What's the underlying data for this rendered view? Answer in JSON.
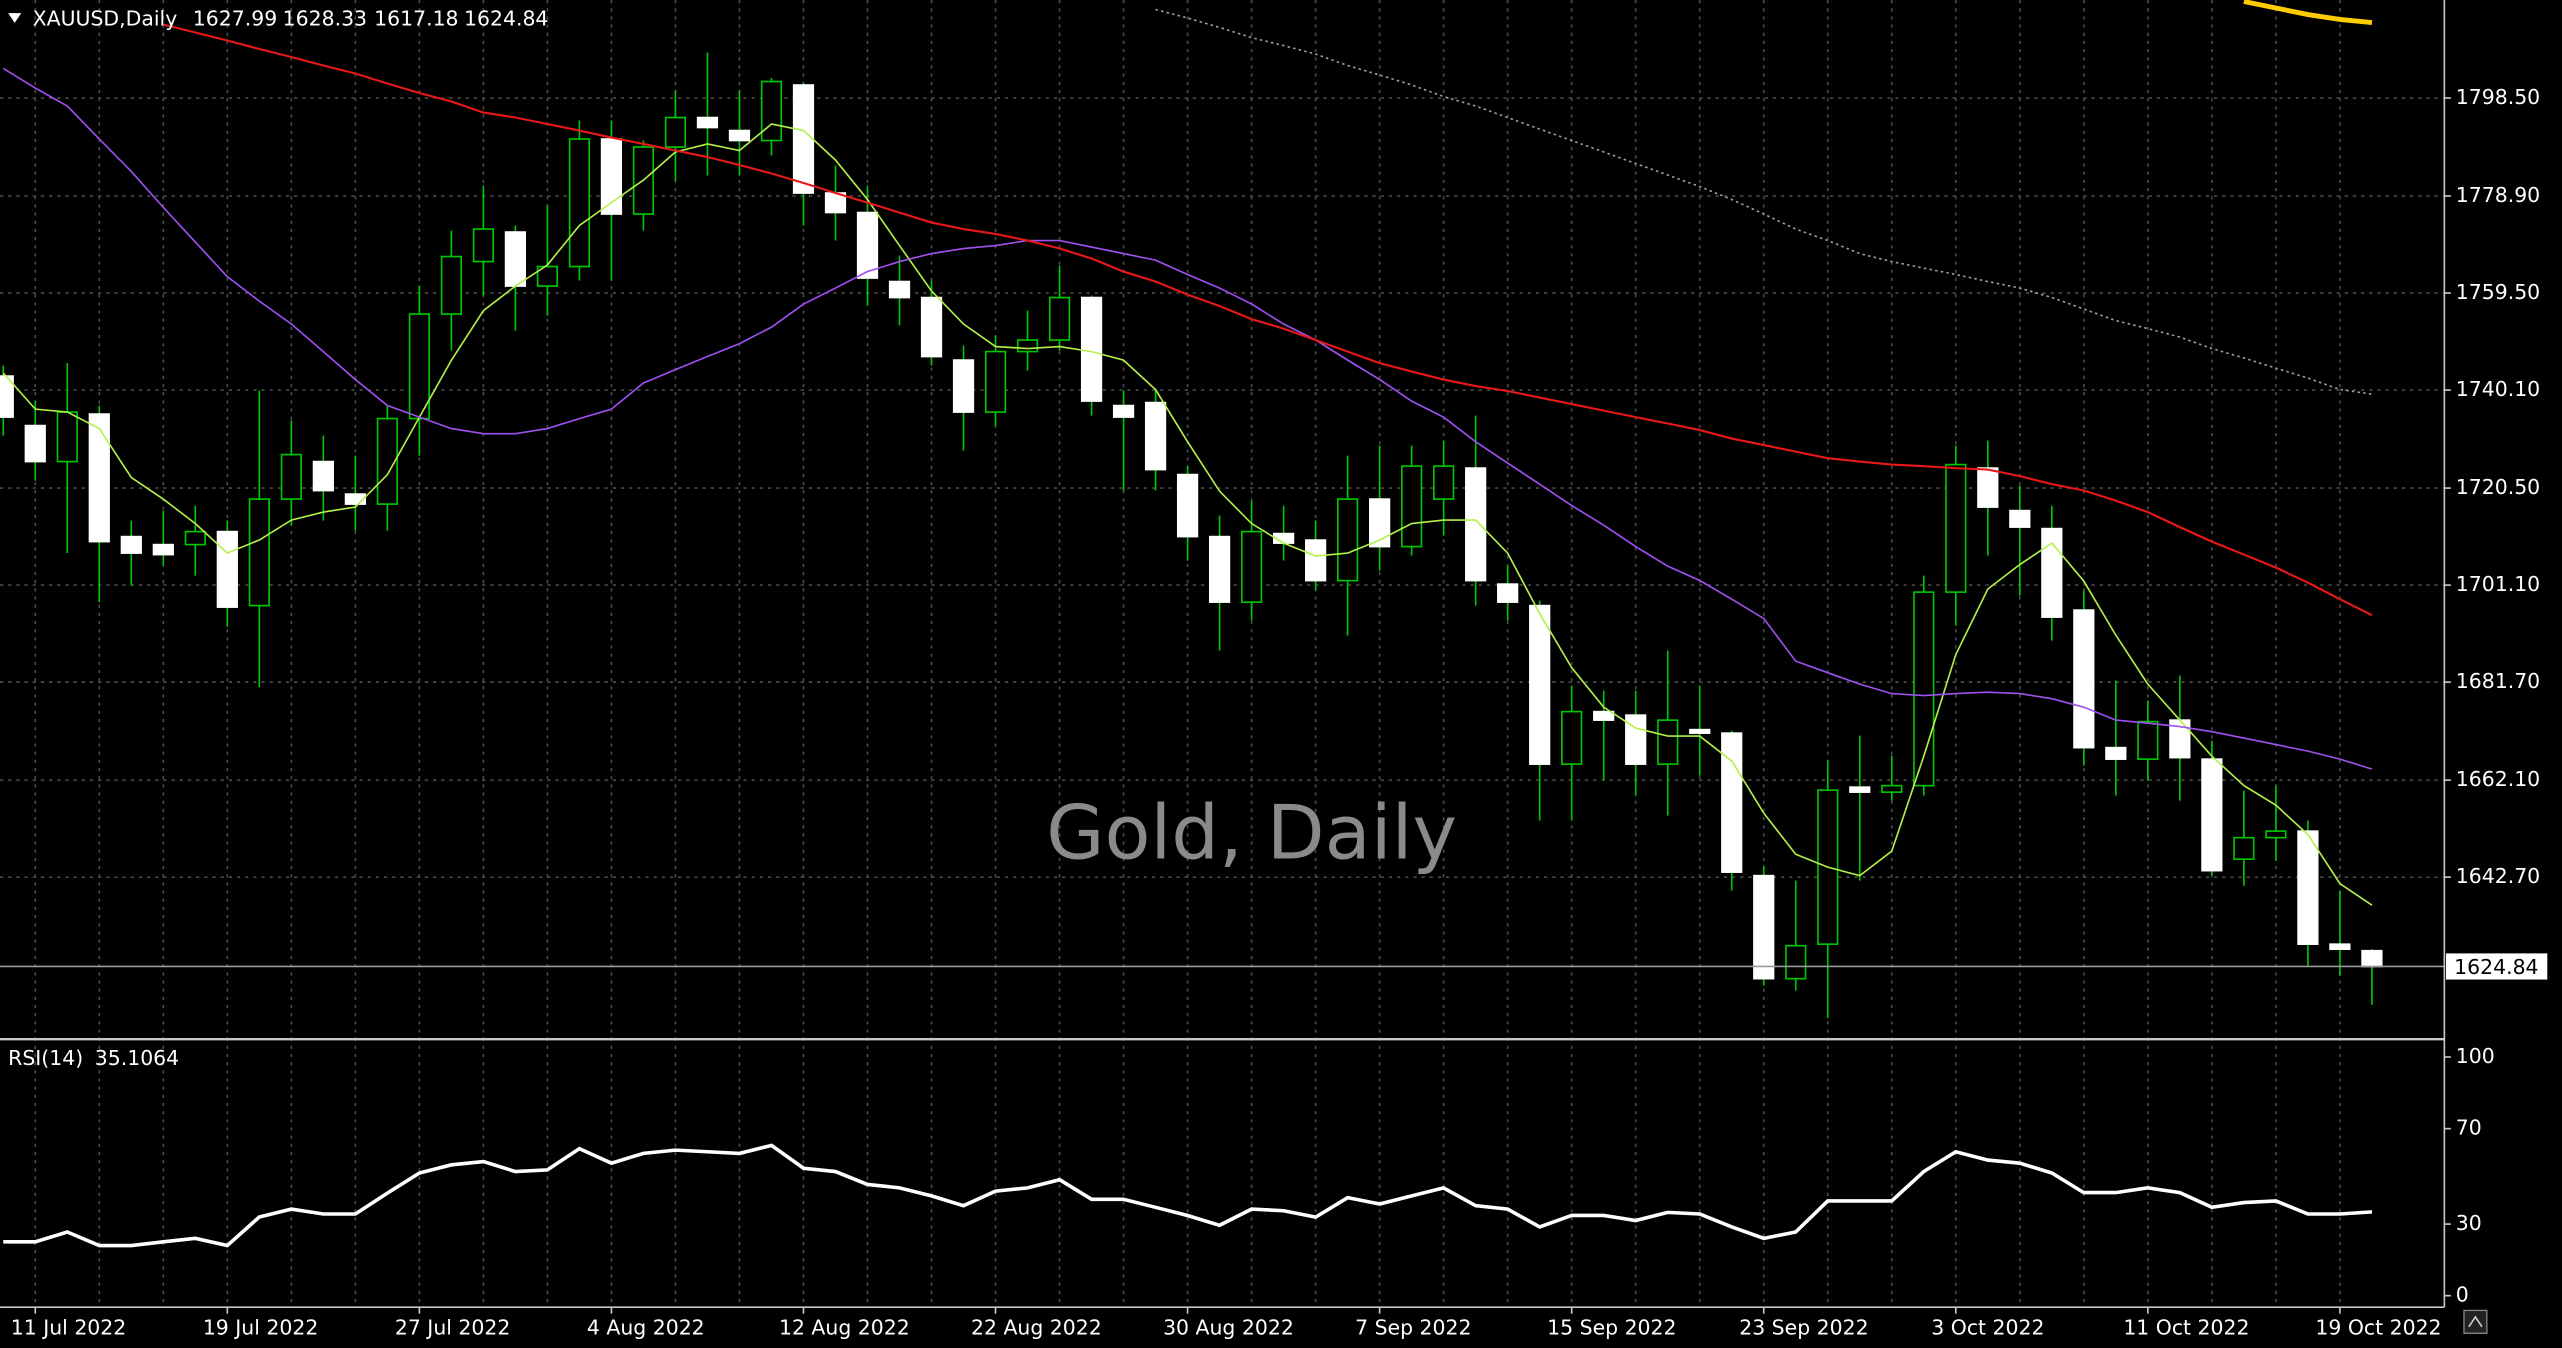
{
  "chart_data": [
    {
      "type": "candlestick",
      "title": "XAUUSD,Daily",
      "watermark": "Gold, Daily",
      "categories": [
        null,
        "11 Jul 2022",
        null,
        null,
        null,
        null,
        null,
        "19 Jul 2022",
        null,
        null,
        null,
        null,
        null,
        "27 Jul 2022",
        null,
        null,
        null,
        null,
        null,
        "4 Aug 2022",
        null,
        null,
        null,
        null,
        null,
        "12 Aug 2022",
        null,
        null,
        null,
        null,
        null,
        "22 Aug 2022",
        null,
        null,
        null,
        null,
        null,
        "30 Aug 2022",
        null,
        null,
        null,
        null,
        null,
        "7 Sep 2022",
        null,
        null,
        null,
        null,
        null,
        "15 Sep 2022",
        null,
        null,
        null,
        null,
        null,
        "23 Sep 2022",
        null,
        null,
        null,
        null,
        null,
        "3 Oct 2022",
        null,
        null,
        null,
        null,
        null,
        "11 Oct 2022",
        null,
        null,
        null,
        null,
        null,
        "19 Oct 2022",
        null
      ],
      "open": [
        1742.9,
        1733.0,
        1725.8,
        1735.3,
        1710.8,
        1709.2,
        1709.2,
        1711.8,
        1697.0,
        1718.3,
        1725.8,
        1719.3,
        1717.3,
        1734.4,
        1755.3,
        1765.8,
        1771.7,
        1760.9,
        1764.8,
        1790.3,
        1775.3,
        1788.7,
        1794.6,
        1792.0,
        1790.0,
        1801.1,
        1779.5,
        1775.6,
        1761.8,
        1758.6,
        1746.1,
        1735.7,
        1747.8,
        1750.1,
        1758.6,
        1737.0,
        1737.6,
        1723.2,
        1710.8,
        1697.7,
        1711.4,
        1710.1,
        1702.0,
        1718.3,
        1708.8,
        1718.3,
        1724.5,
        1701.3,
        1697.0,
        1665.3,
        1675.8,
        1675.1,
        1665.3,
        1672.2,
        1671.5,
        1643.0,
        1622.4,
        1629.3,
        1660.7,
        1659.7,
        1661.0,
        1699.7,
        1724.5,
        1716.0,
        1712.4,
        1696.1,
        1668.6,
        1666.3,
        1674.1,
        1666.3,
        1646.3,
        1650.6,
        1651.9,
        1629.3,
        1627.99
      ],
      "high": [
        1745,
        1738,
        1745.5,
        1737,
        1714,
        1716,
        1717,
        1714,
        1740,
        1734,
        1731,
        1727,
        1737,
        1761,
        1772,
        1781,
        1773,
        1777,
        1794,
        1794,
        1790,
        1800,
        1807.6,
        1800,
        1802.5,
        1801.5,
        1785,
        1781,
        1767,
        1762,
        1749,
        1751,
        1756,
        1765,
        1759,
        1740,
        1740,
        1725,
        1715,
        1718,
        1717,
        1714,
        1727,
        1729,
        1729,
        1730,
        1735,
        1705,
        1698,
        1681,
        1680,
        1680,
        1688,
        1681,
        1672,
        1645,
        1642,
        1666,
        1671,
        1667,
        1703,
        1729,
        1730,
        1721,
        1717,
        1700,
        1682,
        1678,
        1683,
        1670,
        1660,
        1661,
        1654,
        1640,
        1628.33
      ],
      "low": [
        1731,
        1722,
        1707.5,
        1697.7,
        1701,
        1705,
        1703,
        1692.8,
        1680.7,
        1713,
        1714,
        1712,
        1712,
        1727,
        1748,
        1759,
        1752,
        1755,
        1762,
        1762,
        1772,
        1782,
        1783,
        1783,
        1787,
        1773,
        1770,
        1757,
        1753,
        1745,
        1728,
        1733,
        1744,
        1748,
        1735,
        1720,
        1720,
        1706,
        1688,
        1694,
        1706,
        1700,
        1691,
        1704,
        1707,
        1711,
        1697,
        1694,
        1654,
        1654,
        1662,
        1659,
        1655,
        1663,
        1640,
        1621,
        1620,
        1614.5,
        1642,
        1658,
        1659,
        1693,
        1707,
        1699,
        1690,
        1665,
        1659,
        1662,
        1658,
        1643,
        1641,
        1646,
        1625,
        1623,
        1617.18
      ],
      "close": [
        1734.7,
        1725.8,
        1735.7,
        1709.8,
        1707.5,
        1707.2,
        1711.8,
        1696.7,
        1718.3,
        1727.2,
        1720.0,
        1717.3,
        1734.4,
        1755.3,
        1766.8,
        1772.3,
        1760.9,
        1764.8,
        1790.3,
        1775.3,
        1788.7,
        1794.6,
        1792.6,
        1790.0,
        1801.8,
        1779.5,
        1775.6,
        1762.5,
        1758.6,
        1746.8,
        1735.7,
        1747.8,
        1750.1,
        1758.6,
        1737.9,
        1734.7,
        1724.2,
        1710.8,
        1697.7,
        1711.8,
        1709.5,
        1702.0,
        1718.3,
        1708.8,
        1724.9,
        1724.9,
        1702.0,
        1697.7,
        1665.3,
        1675.8,
        1674.1,
        1665.3,
        1674.1,
        1671.5,
        1643.7,
        1622.4,
        1629.0,
        1660.1,
        1659.7,
        1661.0,
        1699.7,
        1725.2,
        1716.7,
        1712.7,
        1694.7,
        1668.6,
        1666.3,
        1673.8,
        1666.6,
        1644.0,
        1650.6,
        1651.9,
        1629.3,
        1628.3,
        1624.84
      ],
      "up_color": "#00c800",
      "down_color": "#ffffff",
      "series": [
        {
          "color": "#b4f04a",
          "linewidth": 1,
          "linestyle": "solid",
          "values": [
            1743.5,
            1736.3,
            1735.7,
            1732.4,
            1722.6,
            1718.3,
            1713.4,
            1707.5,
            1710.1,
            1714.1,
            1715.7,
            1716.7,
            1723.2,
            1734.7,
            1746.1,
            1756.0,
            1760.9,
            1765.1,
            1773.0,
            1777.6,
            1782.1,
            1787.7,
            1789.3,
            1788.0,
            1793.3,
            1792.0,
            1786.1,
            1778.2,
            1769.0,
            1759.9,
            1753.3,
            1748.8,
            1748.4,
            1748.8,
            1747.8,
            1746.1,
            1740.2,
            1729.8,
            1719.9,
            1713.4,
            1709.5,
            1706.9,
            1707.5,
            1710.1,
            1713.4,
            1714.1,
            1714.1,
            1707.5,
            1695.4,
            1684.6,
            1676.7,
            1672.5,
            1670.9,
            1670.9,
            1665.9,
            1655.5,
            1647.3,
            1644.7,
            1643.0,
            1647.9,
            1666.9,
            1687.2,
            1700.3,
            1705.2,
            1709.5,
            1701.9,
            1691.1,
            1681.3,
            1674.1,
            1666.9,
            1661.0,
            1657.1,
            1651.2,
            1641.4,
            1637.1
          ]
        },
        {
          "color": "#a050f0",
          "linewidth": 1,
          "linestyle": "solid",
          "values": [
            1804.4,
            1800.5,
            1796.9,
            1790.3,
            1783.8,
            1776.6,
            1769.7,
            1762.8,
            1757.9,
            1753.3,
            1747.8,
            1742.2,
            1737.0,
            1734.7,
            1732.4,
            1731.4,
            1731.4,
            1732.4,
            1734.4,
            1736.3,
            1741.5,
            1744.2,
            1746.8,
            1749.4,
            1752.7,
            1757.3,
            1760.5,
            1763.8,
            1765.8,
            1767.4,
            1768.4,
            1769.0,
            1770.0,
            1770.0,
            1768.7,
            1767.4,
            1766.1,
            1763.2,
            1760.5,
            1757.3,
            1753.3,
            1750.1,
            1746.1,
            1742.2,
            1737.9,
            1734.7,
            1729.8,
            1725.5,
            1721.3,
            1717.0,
            1713.1,
            1708.8,
            1704.9,
            1702.0,
            1698.3,
            1694.4,
            1685.9,
            1683.6,
            1681.3,
            1679.4,
            1679.0,
            1679.4,
            1679.7,
            1679.4,
            1678.4,
            1676.7,
            1674.1,
            1673.5,
            1672.8,
            1671.8,
            1670.5,
            1669.2,
            1667.9,
            1666.3,
            1664.3
          ]
        },
        {
          "color": "#e81818",
          "linewidth": 1.3,
          "linestyle": "solid",
          "values": [
            null,
            null,
            null,
            null,
            null,
            1813.2,
            1811.6,
            1810.0,
            1808.3,
            1806.7,
            1805.0,
            1803.4,
            1801.4,
            1799.5,
            1797.8,
            1795.6,
            1794.6,
            1793.3,
            1792.0,
            1790.6,
            1789.3,
            1788.0,
            1786.7,
            1785.1,
            1783.4,
            1781.5,
            1779.5,
            1777.6,
            1775.6,
            1773.6,
            1772.3,
            1771.3,
            1770.0,
            1768.4,
            1766.4,
            1763.8,
            1761.8,
            1759.2,
            1756.9,
            1754.3,
            1752.4,
            1750.1,
            1747.8,
            1745.5,
            1743.8,
            1742.2,
            1740.9,
            1739.9,
            1738.6,
            1737.3,
            1736.0,
            1734.7,
            1733.4,
            1732.1,
            1730.4,
            1729.1,
            1727.8,
            1726.5,
            1725.8,
            1725.2,
            1724.9,
            1724.5,
            1724.2,
            1722.9,
            1721.3,
            1720.0,
            1718.0,
            1715.7,
            1712.7,
            1709.8,
            1707.2,
            1704.6,
            1701.6,
            1698.3,
            1695.1
          ]
        },
        {
          "color": "#a0a0a0",
          "linewidth": 1,
          "linestyle": "dotted",
          "values": [
            null,
            null,
            null,
            null,
            null,
            null,
            null,
            null,
            null,
            null,
            null,
            null,
            null,
            null,
            null,
            null,
            null,
            null,
            null,
            null,
            null,
            null,
            null,
            null,
            null,
            null,
            null,
            null,
            null,
            null,
            null,
            null,
            null,
            null,
            null,
            null,
            1816.2,
            1814.5,
            1812.6,
            1810.6,
            1809.0,
            1807.3,
            1805.0,
            1803.1,
            1801.1,
            1798.8,
            1796.9,
            1794.6,
            1792.3,
            1790.0,
            1787.7,
            1785.4,
            1783.1,
            1780.8,
            1778.2,
            1775.3,
            1772.3,
            1770.0,
            1767.4,
            1765.8,
            1764.5,
            1763.2,
            1761.8,
            1760.5,
            1758.6,
            1756.3,
            1754.0,
            1752.4,
            1750.7,
            1748.4,
            1746.5,
            1744.5,
            1742.5,
            1740.2,
            1739.3
          ]
        },
        {
          "color": "#ffcc00",
          "linewidth": 3,
          "linestyle": "solid",
          "values": [
            null,
            null,
            null,
            null,
            null,
            null,
            null,
            null,
            null,
            null,
            null,
            null,
            null,
            null,
            null,
            null,
            null,
            null,
            null,
            null,
            null,
            null,
            null,
            null,
            null,
            null,
            null,
            null,
            null,
            null,
            null,
            null,
            null,
            null,
            null,
            null,
            null,
            null,
            null,
            null,
            null,
            null,
            null,
            null,
            null,
            null,
            null,
            null,
            null,
            null,
            null,
            null,
            null,
            null,
            null,
            null,
            null,
            null,
            null,
            null,
            null,
            null,
            null,
            null,
            null,
            null,
            null,
            null,
            null,
            null,
            1817.8,
            1816.5,
            1815.2,
            1814.2,
            1813.6
          ]
        }
      ],
      "ylim": [
        1610.3,
        1818.1
      ],
      "yticks": [
        {
          "value": 1798.5,
          "label": "1798.50"
        },
        {
          "value": 1778.9,
          "label": "1778.90"
        },
        {
          "value": 1759.5,
          "label": "1759.50"
        },
        {
          "value": 1740.1,
          "label": "1740.10"
        },
        {
          "value": 1720.5,
          "label": "1720.50"
        },
        {
          "value": 1701.1,
          "label": "1701.10"
        },
        {
          "value": 1681.7,
          "label": "1681.70"
        },
        {
          "value": 1662.1,
          "label": "1662.10"
        },
        {
          "value": 1642.7,
          "label": "1642.70"
        }
      ],
      "grid": true
    },
    {
      "type": "line",
      "title": "RSI(14)",
      "color": "#ffffff",
      "values": [
        22.6,
        22.6,
        26.7,
        21,
        21,
        22.6,
        24,
        21,
        33,
        36.3,
        34.2,
        34.2,
        43,
        51.4,
        54.8,
        56.2,
        52,
        52.7,
        61.6,
        55.5,
        59.6,
        61,
        60.3,
        59.6,
        63,
        53.4,
        52,
        46.6,
        45.2,
        41.8,
        37.7,
        43.8,
        45.2,
        48.6,
        40.4,
        40.4,
        37,
        33.6,
        29.5,
        36.3,
        35.6,
        32.9,
        41.1,
        38.4,
        41.8,
        45.2,
        37.7,
        36.3,
        28.8,
        33.6,
        33.6,
        31.5,
        34.9,
        34.2,
        28.8,
        24,
        26.7,
        39.7,
        39.7,
        39.7,
        52,
        60.3,
        56.8,
        55.5,
        51.4,
        43.2,
        43.2,
        45.2,
        43.2,
        37,
        39,
        39.7,
        34.2,
        34.2,
        35.1064
      ],
      "ylim": [
        -4.8,
        106.8
      ],
      "yticks": [
        100,
        70,
        30,
        0
      ],
      "grid": false
    }
  ]
}
